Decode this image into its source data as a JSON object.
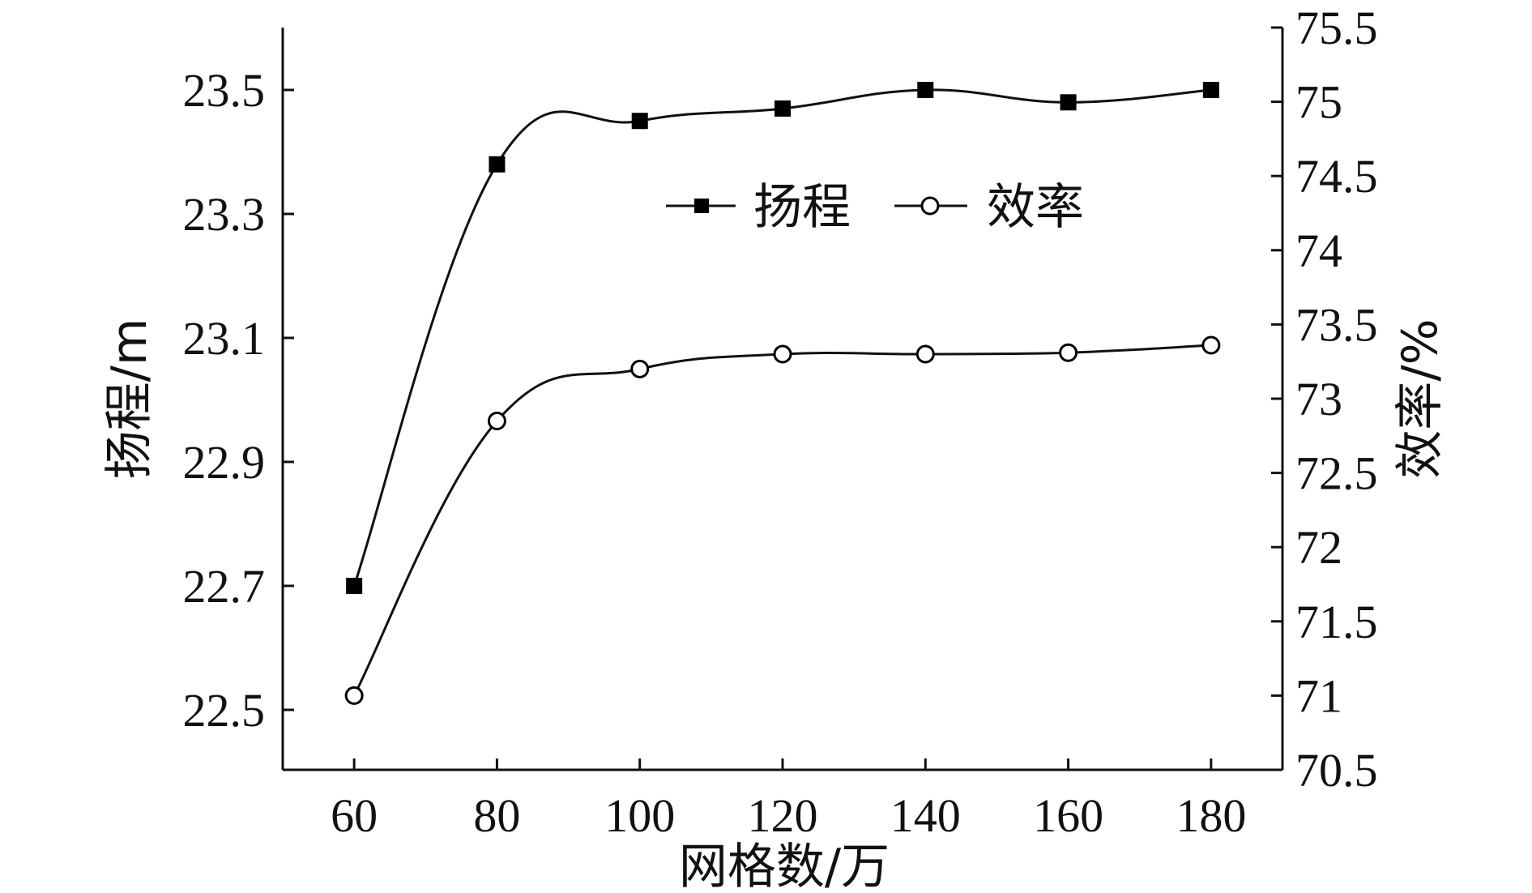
{
  "chart_data": {
    "type": "line",
    "xlabel": "网格数/万",
    "ylabel_left": "扬程/m",
    "ylabel_right": "效率/%",
    "x": [
      60,
      80,
      100,
      120,
      140,
      160,
      180
    ],
    "x_ticks": [
      "60",
      "80",
      "100",
      "120",
      "140",
      "160",
      "180"
    ],
    "xlim": [
      50,
      190
    ],
    "ylim_left": [
      22.4,
      23.6
    ],
    "ylim_right": [
      70.5,
      75.5
    ],
    "y_ticks_left": [
      "22.5",
      "22.7",
      "22.9",
      "23.1",
      "23.3",
      "23.5"
    ],
    "y_ticks_right": [
      "70.5",
      "71",
      "71.5",
      "72",
      "72.5",
      "73",
      "73.5",
      "74",
      "74.5",
      "75",
      "75.5"
    ],
    "legend_position": "upper-center",
    "grid": false,
    "series": [
      {
        "name": "扬程",
        "axis": "left",
        "marker": "filled-square",
        "values": [
          22.7,
          23.38,
          23.45,
          23.47,
          23.5,
          23.48,
          23.5
        ]
      },
      {
        "name": "效率",
        "axis": "right",
        "marker": "hollow-circle",
        "values": [
          71.0,
          72.85,
          73.2,
          73.3,
          73.3,
          73.31,
          73.36
        ]
      }
    ],
    "colors": {
      "line": "#111111",
      "marker": "#000000",
      "background": "#ffffff"
    }
  }
}
